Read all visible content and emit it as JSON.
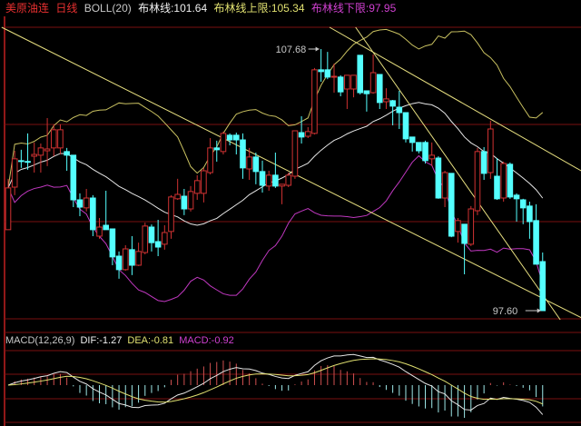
{
  "header": {
    "symbol": "美原油连",
    "period": "日线",
    "indicator": "BOLL(20)",
    "mid_label": "布林线:101.64",
    "upper_label": "布林线上限:105.34",
    "lower_label": "布林线下限:97.95"
  },
  "macd_header": {
    "name": "MACD(12,26,9)",
    "dif": "DIF:-1.27",
    "dea": "DEA:-0.81",
    "macd": "MACD:-0.92"
  },
  "colors": {
    "up": "#d03232",
    "down": "#54ffff",
    "boll_mid": "#e6e6e6",
    "boll_upper": "#c8c060",
    "boll_lower": "#c038c0",
    "trendline": "#e8e080",
    "grid": "#7a1010",
    "dif": "#e6e6e6",
    "dea": "#e0e070"
  },
  "chart_data": [
    {
      "type": "candlestick",
      "title": "美原油连 日线",
      "ylim": [
        97.25,
        109.0
      ],
      "annotations": [
        {
          "label": "107.68",
          "candle": 48,
          "price": 107.68,
          "kind": "high"
        },
        {
          "label": "97.60",
          "candle": 82,
          "price": 97.6,
          "kind": "low"
        }
      ],
      "overlay": {
        "type": "BOLL",
        "period": 20,
        "mid": 101.64,
        "upper": 105.34,
        "lower": 97.95
      },
      "trendlines": [
        {
          "from": [
            -1,
            108.52
          ],
          "to": [
            88,
            97.32
          ]
        },
        {
          "from": [
            49.3,
            108.52
          ],
          "to": [
            87.9,
            102.99
          ]
        },
        {
          "from": [
            53.3,
            108.52
          ],
          "to": [
            84.7,
            97.25
          ]
        }
      ],
      "ohlc_fields": [
        "open",
        "high",
        "low",
        "close"
      ],
      "candles": [
        [
          100.72,
          102.68,
          100.72,
          102.33
        ],
        [
          102.36,
          103.76,
          102.05,
          103.45
        ],
        [
          103.38,
          103.8,
          103.1,
          103.35
        ],
        [
          103.35,
          104.43,
          103.03,
          103.32
        ],
        [
          103.55,
          104.08,
          102.92,
          103.62
        ],
        [
          103.59,
          104.04,
          102.92,
          103.87
        ],
        [
          103.76,
          105.02,
          103.17,
          103.83
        ],
        [
          103.87,
          104.78,
          103.55,
          104.57
        ],
        [
          103.87,
          104.78,
          103.62,
          104.57
        ],
        [
          103.73,
          103.87,
          102.99,
          103.59
        ],
        [
          103.59,
          103.59,
          101.59,
          101.87
        ],
        [
          101.87,
          102.12,
          101.24,
          101.59
        ],
        [
          101.56,
          102.29,
          101.42,
          101.94
        ],
        [
          101.94,
          102.05,
          100.47,
          100.72
        ],
        [
          100.47,
          101.17,
          100.37,
          100.82
        ],
        [
          100.89,
          102.22,
          100.72,
          100.72
        ],
        [
          100.75,
          100.75,
          99.35,
          99.67
        ],
        [
          99.7,
          99.88,
          98.83,
          99.18
        ],
        [
          99.18,
          100.12,
          99.14,
          99.98
        ],
        [
          99.95,
          100.47,
          98.97,
          99.35
        ],
        [
          99.35,
          100.22,
          99.32,
          99.88
        ],
        [
          99.84,
          100.99,
          99.77,
          100.86
        ],
        [
          100.82,
          100.92,
          99.88,
          100.22
        ],
        [
          100.26,
          101.1,
          99.7,
          100.05
        ],
        [
          100.16,
          100.89,
          99.95,
          100.61
        ],
        [
          100.65,
          102.05,
          100.37,
          101.98
        ],
        [
          101.91,
          102.68,
          101.87,
          102.08
        ],
        [
          102.01,
          102.29,
          101.28,
          101.52
        ],
        [
          101.52,
          102.4,
          101.42,
          102.19
        ],
        [
          102.12,
          102.82,
          101.87,
          102.61
        ],
        [
          102.12,
          103.1,
          101.77,
          102.99
        ],
        [
          102.92,
          104.25,
          102.85,
          103.87
        ],
        [
          103.87,
          104.15,
          103.34,
          103.8
        ],
        [
          103.73,
          104.5,
          103.62,
          104.43
        ],
        [
          104.36,
          104.43,
          103.97,
          104.18
        ],
        [
          104.36,
          104.46,
          103.62,
          104.18
        ],
        [
          104.18,
          104.43,
          102.68,
          103.1
        ],
        [
          103.06,
          103.87,
          102.64,
          103.52
        ],
        [
          103.52,
          103.69,
          102.47,
          102.96
        ],
        [
          102.96,
          103.38,
          102.15,
          102.43
        ],
        [
          102.4,
          102.99,
          102.22,
          102.82
        ],
        [
          102.82,
          103.69,
          102.33,
          102.4
        ],
        [
          102.4,
          102.47,
          101.7,
          102.47
        ],
        [
          102.43,
          102.92,
          102.36,
          102.82
        ],
        [
          102.78,
          104.53,
          102.68,
          104.53
        ],
        [
          104.46,
          105.09,
          104.04,
          104.29
        ],
        [
          104.32,
          104.67,
          104.25,
          104.5
        ],
        [
          104.43,
          106.95,
          104.39,
          106.88
        ],
        [
          106.88,
          107.68,
          106.42,
          106.81
        ],
        [
          106.88,
          107.57,
          106.52,
          106.6
        ],
        [
          106.6,
          107.12,
          106.0,
          106.63
        ],
        [
          106.6,
          106.67,
          105.86,
          106.03
        ],
        [
          106.14,
          106.67,
          105.37,
          106.67
        ],
        [
          106.14,
          106.67,
          105.82,
          106.67
        ],
        [
          107.44,
          107.44,
          105.93,
          106.0
        ],
        [
          106.07,
          106.07,
          105.27,
          105.96
        ],
        [
          106.0,
          107.47,
          105.96,
          106.77
        ],
        [
          106.7,
          106.7,
          105.37,
          105.62
        ],
        [
          105.65,
          106.17,
          105.37,
          105.76
        ],
        [
          105.69,
          105.72,
          104.74,
          105.48
        ],
        [
          105.44,
          106.07,
          104.6,
          105.23
        ],
        [
          105.23,
          105.23,
          104.08,
          104.22
        ],
        [
          104.29,
          104.29,
          103.73,
          104.08
        ],
        [
          104.08,
          104.08,
          103.66,
          103.76
        ],
        [
          104.08,
          104.15,
          103.27,
          103.38
        ],
        [
          103.45,
          104.08,
          103.17,
          103.59
        ],
        [
          103.48,
          103.55,
          101.91,
          101.94
        ],
        [
          101.94,
          102.99,
          101.59,
          102.92
        ],
        [
          102.89,
          102.89,
          100.43,
          100.47
        ],
        [
          100.65,
          101.17,
          100.22,
          101.07
        ],
        [
          100.93,
          100.93,
          99.0,
          100.19
        ],
        [
          100.16,
          101.63,
          100.09,
          101.52
        ],
        [
          101.45,
          103.87,
          101.28,
          103.73
        ],
        [
          103.73,
          103.9,
          102.64,
          102.89
        ],
        [
          102.92,
          104.92,
          102.68,
          104.6
        ],
        [
          102.78,
          103.48,
          101.87,
          101.91
        ],
        [
          101.94,
          103.34,
          101.8,
          103.27
        ],
        [
          103.24,
          103.31,
          101.91,
          101.98
        ],
        [
          102.05,
          102.12,
          101.03,
          101.91
        ],
        [
          101.87,
          101.91,
          100.93,
          101.56
        ],
        [
          101.63,
          101.8,
          100.37,
          101.03
        ],
        [
          101.07,
          101.7,
          99.39,
          99.39
        ],
        [
          99.49,
          99.84,
          97.6,
          97.6
        ]
      ]
    },
    {
      "type": "bar+line",
      "title": "MACD(12,26,9)",
      "params": [
        12,
        26,
        9
      ],
      "last": {
        "dif": -1.27,
        "dea": -0.81,
        "macd": -0.92
      },
      "series": [
        {
          "name": "DIF"
        },
        {
          "name": "DEA"
        },
        {
          "name": "MACD"
        }
      ]
    }
  ]
}
